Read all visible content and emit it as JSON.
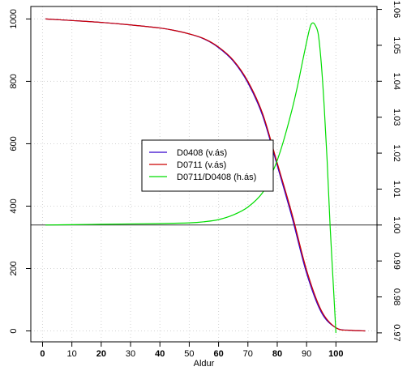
{
  "chart_data": {
    "type": "line",
    "xlabel": "Aldur",
    "xlim": [
      -4,
      114
    ],
    "ylim_left": [
      -35,
      1040
    ],
    "ylim_right": [
      0.9675,
      1.0608
    ],
    "x_ticks": [
      {
        "value": 0,
        "label": "0",
        "bold": true
      },
      {
        "value": 10,
        "label": "10",
        "bold": false
      },
      {
        "value": 20,
        "label": "20",
        "bold": true
      },
      {
        "value": 30,
        "label": "30",
        "bold": false
      },
      {
        "value": 40,
        "label": "40",
        "bold": true
      },
      {
        "value": 50,
        "label": "50",
        "bold": false
      },
      {
        "value": 60,
        "label": "60",
        "bold": true
      },
      {
        "value": 70,
        "label": "70",
        "bold": false
      },
      {
        "value": 80,
        "label": "80",
        "bold": true
      },
      {
        "value": 90,
        "label": "90",
        "bold": false
      },
      {
        "value": 100,
        "label": "100",
        "bold": true
      }
    ],
    "y_ticks_left": [
      {
        "value": 0,
        "label": "0"
      },
      {
        "value": 200,
        "label": "200"
      },
      {
        "value": 400,
        "label": "400"
      },
      {
        "value": 600,
        "label": "600"
      },
      {
        "value": 800,
        "label": "800"
      },
      {
        "value": 1000,
        "label": "1000"
      }
    ],
    "y_ticks_right": [
      {
        "value": 0.97,
        "label": "0.97"
      },
      {
        "value": 0.98,
        "label": "0.98"
      },
      {
        "value": 0.99,
        "label": "0.99"
      },
      {
        "value": 1.0,
        "label": "1.00"
      },
      {
        "value": 1.01,
        "label": "1.01"
      },
      {
        "value": 1.02,
        "label": "1.02"
      },
      {
        "value": 1.03,
        "label": "1.03"
      },
      {
        "value": 1.04,
        "label": "1.04"
      },
      {
        "value": 1.05,
        "label": "1.05"
      },
      {
        "value": 1.06,
        "label": "1.06"
      }
    ],
    "grid": true,
    "reference_line_right": 1.0,
    "legend_placement": "center",
    "series": [
      {
        "name": "D0408 (v.ás)",
        "axis": "left",
        "color": "#3300cc",
        "x": [
          1,
          10,
          20,
          30,
          40,
          45,
          50,
          55,
          60,
          65,
          70,
          75,
          80,
          85,
          90,
          95,
          100,
          105,
          110
        ],
        "y": [
          1000,
          995,
          989,
          981,
          971,
          963,
          952,
          936,
          908,
          865,
          795,
          690,
          530,
          365,
          185,
          60,
          10,
          2,
          0
        ]
      },
      {
        "name": "D0711 (v.ás)",
        "axis": "left",
        "color": "#cc0000",
        "x": [
          1,
          10,
          20,
          30,
          40,
          45,
          50,
          55,
          60,
          65,
          70,
          75,
          80,
          85,
          90,
          95,
          100,
          105,
          110
        ],
        "y": [
          1000,
          995,
          989,
          981,
          971,
          963,
          952,
          937,
          910,
          868,
          800,
          697,
          538,
          376,
          195,
          66,
          10,
          2,
          0
        ]
      },
      {
        "name": "D0711/D0408 (h.ás)",
        "axis": "right",
        "color": "#00dd00",
        "x": [
          1,
          10,
          20,
          30,
          40,
          50,
          55,
          60,
          65,
          70,
          75,
          78,
          80,
          82,
          85,
          87,
          89,
          91,
          92,
          93,
          94,
          95,
          96,
          97,
          98,
          99,
          100
        ],
        "y": [
          1.0,
          1.0001,
          1.0002,
          1.0003,
          1.0004,
          1.0006,
          1.0009,
          1.0015,
          1.0028,
          1.005,
          1.009,
          1.014,
          1.018,
          1.023,
          1.032,
          1.039,
          1.047,
          1.0545,
          1.0562,
          1.0555,
          1.053,
          1.045,
          1.033,
          1.018,
          1.0,
          0.985,
          0.97
        ]
      }
    ]
  }
}
